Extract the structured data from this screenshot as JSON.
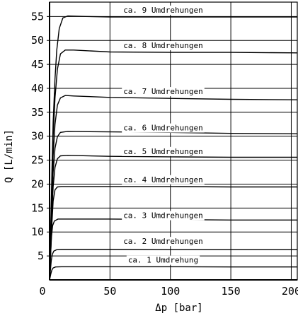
{
  "chart_data": {
    "type": "line",
    "xlabel": "Δp [bar]",
    "ylabel": "Q [L/min]",
    "xlim": [
      0,
      205
    ],
    "ylim": [
      0,
      58
    ],
    "x_ticks": [
      "0",
      "50",
      "100",
      "150",
      "200"
    ],
    "y_ticks": [
      "5",
      "10",
      "15",
      "20",
      "25",
      "30",
      "35",
      "40",
      "45",
      "50",
      "55"
    ],
    "grid": true,
    "series": [
      {
        "name": "ca. 1 Umdrehung",
        "points": [
          [
            0,
            0
          ],
          [
            0.5,
            0.6
          ],
          [
            1,
            1.2
          ],
          [
            1.5,
            1.7
          ],
          [
            2,
            2.1
          ],
          [
            3,
            2.5
          ],
          [
            5,
            2.7
          ],
          [
            10,
            2.75
          ],
          [
            50,
            2.75
          ],
          [
            100,
            2.75
          ],
          [
            150,
            2.7
          ],
          [
            205,
            2.7
          ]
        ]
      },
      {
        "name": "ca. 2 Umdrehungen",
        "points": [
          [
            0,
            0
          ],
          [
            0.7,
            2
          ],
          [
            1.4,
            4
          ],
          [
            2.2,
            5.3
          ],
          [
            3.5,
            6
          ],
          [
            6,
            6.3
          ],
          [
            10,
            6.35
          ],
          [
            50,
            6.35
          ],
          [
            100,
            6.3
          ],
          [
            150,
            6.3
          ],
          [
            205,
            6.3
          ]
        ]
      },
      {
        "name": "ca. 3 Umdrehungen",
        "points": [
          [
            0,
            0
          ],
          [
            0.8,
            5
          ],
          [
            1.6,
            9
          ],
          [
            2.5,
            11.3
          ],
          [
            4,
            12.3
          ],
          [
            7,
            12.7
          ],
          [
            12,
            12.7
          ],
          [
            50,
            12.7
          ],
          [
            100,
            12.6
          ],
          [
            150,
            12.5
          ],
          [
            205,
            12.5
          ]
        ]
      },
      {
        "name": "ca. 4 Umdrehungen",
        "points": [
          [
            0,
            0
          ],
          [
            1,
            6
          ],
          [
            2,
            12
          ],
          [
            3,
            16.5
          ],
          [
            4.5,
            18.8
          ],
          [
            6.5,
            19.4
          ],
          [
            10,
            19.5
          ],
          [
            50,
            19.5
          ],
          [
            100,
            19.5
          ],
          [
            150,
            19.4
          ],
          [
            205,
            19.4
          ]
        ]
      },
      {
        "name": "ca. 5 Umdrehungen",
        "points": [
          [
            0,
            0
          ],
          [
            1,
            7
          ],
          [
            2,
            14
          ],
          [
            3,
            19.5
          ],
          [
            4.5,
            23.5
          ],
          [
            6.5,
            25.3
          ],
          [
            9,
            25.9
          ],
          [
            15,
            26
          ],
          [
            50,
            25.8
          ],
          [
            100,
            25.7
          ],
          [
            150,
            25.6
          ],
          [
            205,
            25.6
          ]
        ]
      },
      {
        "name": "ca. 6 Umdrehungen",
        "points": [
          [
            0,
            0
          ],
          [
            1,
            8
          ],
          [
            2,
            16
          ],
          [
            3,
            22.5
          ],
          [
            4.5,
            27.5
          ],
          [
            6.5,
            29.9
          ],
          [
            9,
            30.8
          ],
          [
            15,
            31
          ],
          [
            50,
            30.9
          ],
          [
            100,
            30.8
          ],
          [
            150,
            30.6
          ],
          [
            205,
            30.5
          ]
        ]
      },
      {
        "name": "ca. 7 Umdrehungen",
        "points": [
          [
            0,
            0
          ],
          [
            1,
            9
          ],
          [
            2,
            18
          ],
          [
            3,
            26
          ],
          [
            4.5,
            32.5
          ],
          [
            6.5,
            36.5
          ],
          [
            9,
            38
          ],
          [
            13,
            38.5
          ],
          [
            20,
            38.4
          ],
          [
            50,
            38.1
          ],
          [
            100,
            37.9
          ],
          [
            150,
            37.7
          ],
          [
            205,
            37.6
          ]
        ]
      },
      {
        "name": "ca. 8 Umdrehungen",
        "points": [
          [
            0,
            0
          ],
          [
            1,
            10
          ],
          [
            2,
            21
          ],
          [
            3,
            30
          ],
          [
            4.5,
            38
          ],
          [
            6.5,
            44
          ],
          [
            9,
            47.2
          ],
          [
            13,
            48
          ],
          [
            20,
            48
          ],
          [
            50,
            47.6
          ],
          [
            100,
            47.5
          ],
          [
            150,
            47.5
          ],
          [
            205,
            47.4
          ]
        ]
      },
      {
        "name": "ca. 9 Umdrehungen",
        "points": [
          [
            0,
            0
          ],
          [
            1,
            11
          ],
          [
            2,
            23
          ],
          [
            3,
            33
          ],
          [
            4.5,
            42
          ],
          [
            6,
            48
          ],
          [
            8,
            52.5
          ],
          [
            11,
            54.7
          ],
          [
            15,
            55.1
          ],
          [
            30,
            55
          ],
          [
            50,
            54.9
          ],
          [
            100,
            54.9
          ],
          [
            150,
            54.9
          ],
          [
            205,
            54.9
          ]
        ]
      }
    ],
    "annotations": [
      {
        "text": "ca. 9 Umdrehungen",
        "x": 94,
        "y": 55.8
      },
      {
        "text": "ca. 8 Umdrehungen",
        "x": 94,
        "y": 48.4
      },
      {
        "text": "ca. 7 Umdrehungen",
        "x": 94,
        "y": 38.8
      },
      {
        "text": "ca. 6 Umdrehungen",
        "x": 94,
        "y": 31.2
      },
      {
        "text": "ca. 5 Umdrehungen",
        "x": 94,
        "y": 26.3
      },
      {
        "text": "ca. 4 Umdrehungen",
        "x": 94,
        "y": 20.4
      },
      {
        "text": "ca. 3 Umdrehungen",
        "x": 94,
        "y": 12.9
      },
      {
        "text": "ca. 2 Umdrehungen",
        "x": 94,
        "y": 7.5
      },
      {
        "text": "ca. 1 Umdrehung",
        "x": 94,
        "y": 3.6
      }
    ]
  }
}
